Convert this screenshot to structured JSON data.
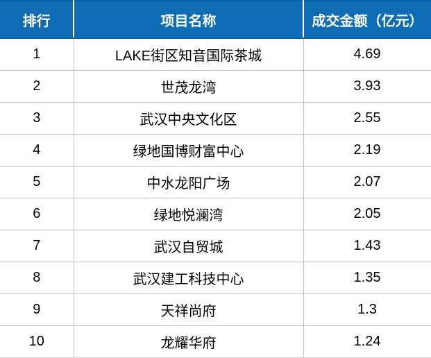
{
  "chart_data": {
    "type": "table",
    "title": "",
    "columns": [
      "排行",
      "项目名称",
      "成交金额（亿元）"
    ],
    "rows": [
      [
        "1",
        "LAKE街区知音国际茶城",
        "4.69"
      ],
      [
        "2",
        "世茂龙湾",
        "3.93"
      ],
      [
        "3",
        "武汉中央文化区",
        "2.55"
      ],
      [
        "4",
        "绿地国博财富中心",
        "2.19"
      ],
      [
        "5",
        "中水龙阳广场",
        "2.07"
      ],
      [
        "6",
        "绿地悦澜湾",
        "2.05"
      ],
      [
        "7",
        "武汉自贸城",
        "1.43"
      ],
      [
        "8",
        "武汉建工科技中心",
        "1.35"
      ],
      [
        "9",
        "天祥尚府",
        "1.3"
      ],
      [
        "10",
        "龙耀华府",
        "1.24"
      ]
    ]
  },
  "colors": {
    "header_bg": "#0f6db5",
    "header_edge": "#0a5f9e",
    "header_text": "#ffffff",
    "grid_line": "#bfbfbf",
    "body_text": "#000000"
  }
}
